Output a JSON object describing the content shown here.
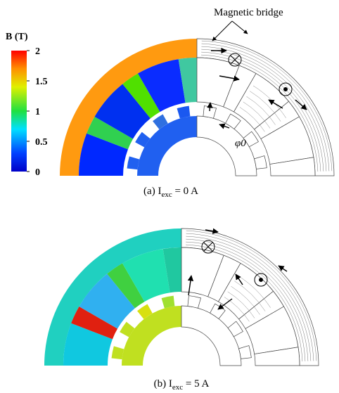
{
  "colorbar": {
    "title": "B (T)",
    "lim": [
      0,
      2
    ],
    "ticks": [
      0,
      0.5,
      1,
      1.5,
      2
    ]
  },
  "annotations": {
    "bridge": "Magnetic bridge",
    "angle": "φ0"
  },
  "panels": [
    {
      "label": "(a)",
      "symbol": "I",
      "subscript": "exc",
      "equation": "= 0 A"
    },
    {
      "label": "(b)",
      "symbol": "I",
      "subscript": "exc",
      "equation": "= 5 A"
    }
  ]
}
